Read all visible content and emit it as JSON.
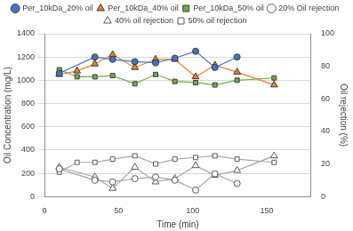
{
  "chart_data": {
    "type": "line",
    "x_label": "Time (min)",
    "y_label": "Oil Concentration (mg/L)",
    "y2_label": "Oil rejection (%)",
    "xlim": [
      0,
      180
    ],
    "xticks": [
      0,
      50,
      100,
      150
    ],
    "ylim": [
      0,
      1400
    ],
    "yticks": [
      0,
      200,
      400,
      600,
      800,
      1000,
      1200,
      1400
    ],
    "y2lim": [
      0,
      100
    ],
    "y2ticks": [
      0,
      20,
      40,
      60,
      80,
      100
    ],
    "grid": true,
    "legend": "top",
    "series": [
      {
        "name": "Per_10kDa_20% oil",
        "color": "#4472c4",
        "marker": "circle",
        "line_style": "solid",
        "x": [
          10,
          34,
          46,
          61,
          75,
          88,
          102,
          115,
          130
        ],
        "values": [
          1060,
          1200,
          1180,
          1160,
          1150,
          1190,
          1250,
          1110,
          1200
        ]
      },
      {
        "name": "Per_10kDa_40% oil",
        "color": "#ed7d31",
        "marker": "triangle",
        "line_style": "solid",
        "x": [
          10,
          22,
          34,
          46,
          61,
          75,
          88,
          102,
          115,
          130,
          155
        ],
        "values": [
          1050,
          1080,
          1140,
          1220,
          1110,
          1180,
          1180,
          1030,
          1130,
          1070,
          960
        ]
      },
      {
        "name": "Per_10kDa_50% oil",
        "color": "#70ad47",
        "marker": "square",
        "line_style": "solid",
        "x": [
          10,
          22,
          34,
          46,
          61,
          75,
          88,
          102,
          115,
          130,
          155
        ],
        "values": [
          1090,
          1030,
          1030,
          1040,
          970,
          1050,
          990,
          980,
          960,
          1000,
          1020
        ]
      },
      {
        "name": "20% Oil rejection",
        "color": "#595959",
        "marker": "open-circle",
        "line_style": "solid",
        "axis": "y2",
        "x": [
          10,
          34,
          46,
          61,
          75,
          88,
          102,
          115,
          130
        ],
        "values": [
          17,
          10,
          9,
          11,
          12,
          10,
          4,
          14,
          8
        ]
      },
      {
        "name": "40% oil rejection",
        "color": "#595959",
        "marker": "open-triangle",
        "line_style": "solid",
        "axis": "y2",
        "x": [
          10,
          34,
          46,
          61,
          75,
          88,
          102,
          115,
          130,
          155
        ],
        "values": [
          18,
          12,
          5,
          18,
          9,
          11,
          19,
          13,
          16,
          25
        ]
      },
      {
        "name": "50% oil rejection",
        "color": "#595959",
        "marker": "open-square",
        "line_style": "solid",
        "axis": "y2",
        "x": [
          10,
          22,
          34,
          46,
          61,
          75,
          88,
          102,
          115,
          130,
          155
        ],
        "values": [
          15,
          21,
          21,
          23,
          25,
          20,
          23,
          24,
          25,
          23,
          21
        ]
      }
    ]
  }
}
